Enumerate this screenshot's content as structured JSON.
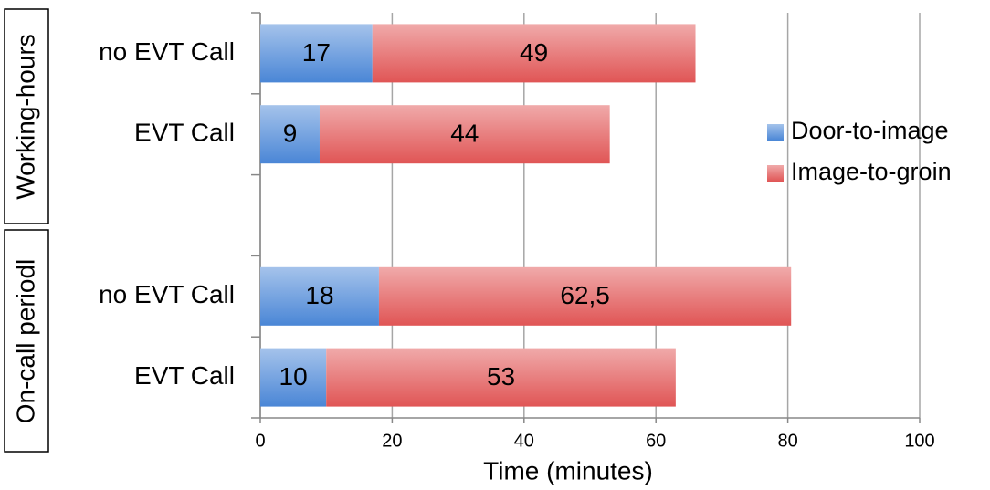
{
  "chart_data": {
    "type": "stacked_barh",
    "x_label": "Time (minutes)",
    "groups": [
      {
        "label": "Working-hours"
      },
      {
        "label": "On-call periodl"
      }
    ],
    "categories": [
      "no EVT Call",
      "EVT Call",
      null,
      "no EVT Call",
      "EVT Call"
    ],
    "series": [
      {
        "name": "Door-to-image",
        "color": "#4a86d6",
        "values": [
          17,
          9,
          null,
          18,
          10
        ]
      },
      {
        "name": "Image-to-groin",
        "color": "#e05555",
        "values": [
          49,
          44,
          null,
          62.5,
          53
        ],
        "value_labels": [
          "49",
          "44",
          null,
          "62,5",
          "53"
        ]
      }
    ],
    "xlim": [
      0,
      100
    ],
    "xticks": [
      0,
      20,
      40,
      60,
      80,
      100
    ],
    "grid": true,
    "legend": "right"
  }
}
